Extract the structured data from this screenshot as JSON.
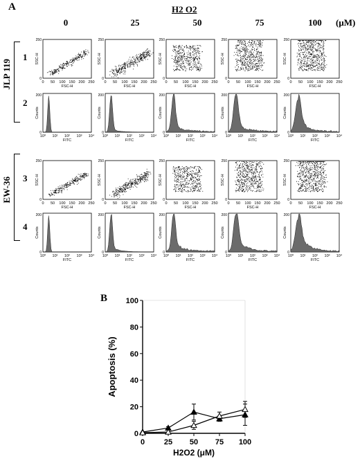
{
  "panel_a": {
    "label": "A",
    "treatment_label": "H2 O2",
    "unit_label": "(μM)",
    "concentrations": [
      "0",
      "25",
      "50",
      "75",
      "100"
    ],
    "cell_lines": [
      {
        "name": "JLP 119",
        "scatter_row": "1",
        "hist_row": "2"
      },
      {
        "name": "EW-36",
        "scatter_row": "3",
        "hist_row": "4"
      }
    ],
    "scatter_axes": {
      "x_label": "FSC-H",
      "y_label": "SSC-H",
      "x_ticks": [
        "0",
        "50",
        "100",
        "150",
        "200",
        "250"
      ],
      "y_ticks": [
        "0",
        "50",
        "100",
        "150",
        "200",
        "250"
      ]
    },
    "hist_axes": {
      "x_label": "FITC",
      "y_label": "Counts",
      "x_ticks": [
        "10⁰",
        "10¹",
        "10²",
        "10³",
        "10⁴"
      ],
      "y_ticks": [
        "0",
        "200"
      ]
    },
    "colors": {
      "histogram_fill": "#6b6b6b",
      "dots": "#000000"
    }
  },
  "chart_data": {
    "type": "line",
    "panel_label": "B",
    "title": "",
    "xlabel": "H2O2 (μM)",
    "ylabel": "Apoptosis (%)",
    "x": [
      0,
      25,
      50,
      75,
      100
    ],
    "xlim": [
      0,
      100
    ],
    "ylim": [
      0,
      100
    ],
    "x_ticks": [
      "0",
      "25",
      "50",
      "75",
      "100"
    ],
    "y_ticks": [
      "0",
      "20",
      "40",
      "60",
      "80",
      "100"
    ],
    "grid": false,
    "series": [
      {
        "marker": "filled-triangle",
        "values": [
          1,
          4,
          16,
          11,
          14
        ],
        "errors": [
          0.5,
          1,
          6,
          2,
          8
        ]
      },
      {
        "marker": "open-triangle",
        "values": [
          0.5,
          1,
          6,
          13,
          18
        ],
        "errors": [
          0.5,
          0.5,
          3,
          3,
          6
        ]
      }
    ]
  }
}
